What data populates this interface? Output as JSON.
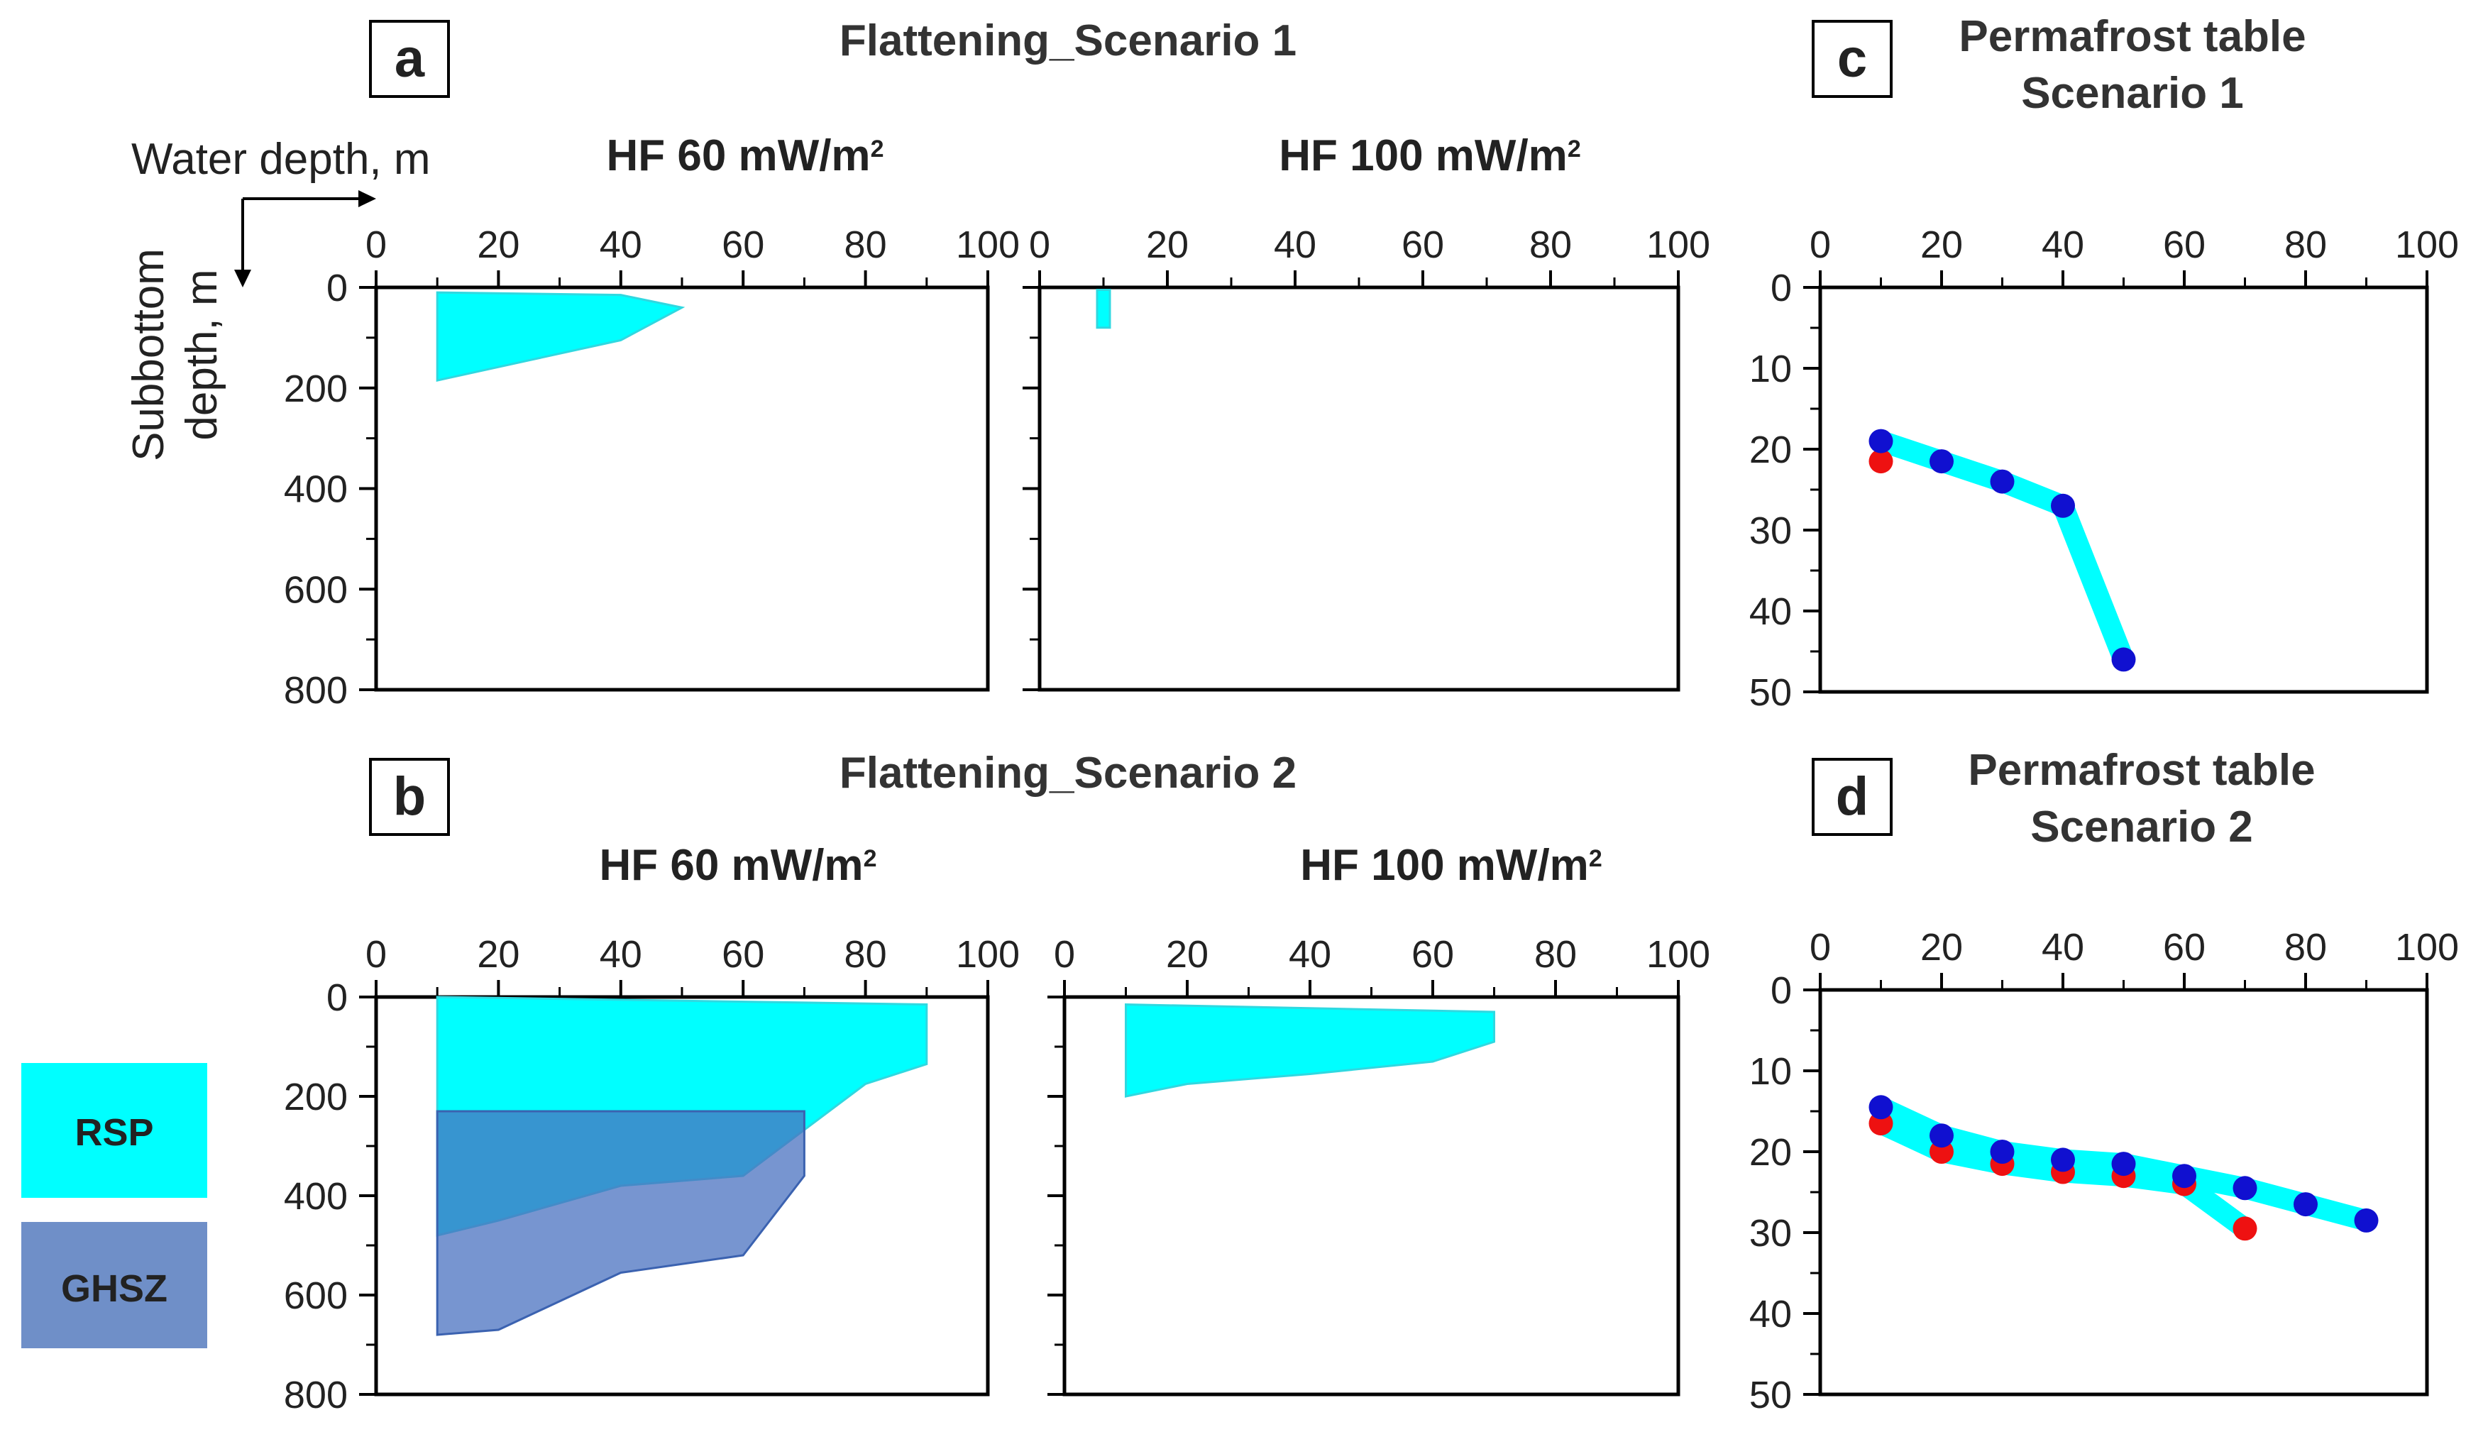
{
  "colors": {
    "rsp": "#00ffff",
    "rsp_edge": "#30d8e0",
    "ghsz": "#4a72c0",
    "blue_dot": "#1010d0",
    "red_dot": "#ee1111",
    "axis": "#000000"
  },
  "figure": {
    "flat_title_1": "Flattening_Scenario 1",
    "flat_title_2": "Flattening_Scenario 2",
    "perm_title_1": [
      "Permafrost table",
      "Scenario 1"
    ],
    "perm_title_2": [
      "Permafrost table",
      "Scenario 2"
    ],
    "water_depth_label": "Water depth, m",
    "subbottom_label": [
      "Subbottom",
      "depth, m"
    ],
    "hf_unit_prefix": "mW/m"
  },
  "legend": [
    {
      "label": "RSP",
      "color": "#00ffff"
    },
    {
      "label": "GHSZ",
      "color": "#6f8fc8"
    }
  ],
  "chart_data": [
    {
      "id": "a1",
      "panel_letter": "a",
      "type": "area",
      "title": "HF 60 mW/m²",
      "hf": "60",
      "x": [
        0,
        100
      ],
      "xticks": [
        0,
        20,
        40,
        60,
        80,
        100
      ],
      "ylim": [
        0,
        800
      ],
      "yticks": [
        0,
        200,
        400,
        600,
        800
      ],
      "yinvert": true,
      "xlabel": "Water depth, m",
      "ylabel": "Subbottom depth, m",
      "series": [
        {
          "name": "RSP",
          "polygon": [
            [
              10,
              10
            ],
            [
              40,
              15
            ],
            [
              50,
              40
            ],
            [
              40,
              105
            ],
            [
              10,
              185
            ]
          ]
        }
      ]
    },
    {
      "id": "a2",
      "panel_letter": "",
      "type": "area",
      "title": "HF 100 mW/m²",
      "hf": "100",
      "x": [
        0,
        100
      ],
      "xticks": [
        0,
        20,
        40,
        60,
        80,
        100
      ],
      "ylim": [
        0,
        800
      ],
      "yticks": [
        0,
        200,
        400,
        600,
        800
      ],
      "yinvert": true,
      "series": [
        {
          "name": "RSP",
          "polygon": [
            [
              9,
              5
            ],
            [
              11,
              5
            ],
            [
              11,
              80
            ],
            [
              9,
              80
            ]
          ]
        }
      ]
    },
    {
      "id": "b1",
      "panel_letter": "b",
      "type": "area",
      "title": "HF 60 mW/m²",
      "hf": "60",
      "x": [
        0,
        100
      ],
      "xticks": [
        0,
        20,
        40,
        60,
        80,
        100
      ],
      "ylim": [
        0,
        800
      ],
      "yticks": [
        0,
        200,
        400,
        600,
        800
      ],
      "yinvert": true,
      "series": [
        {
          "name": "RSP",
          "polygon": [
            [
              10,
              0
            ],
            [
              90,
              15
            ],
            [
              90,
              135
            ],
            [
              80,
              175
            ],
            [
              60,
              360
            ],
            [
              40,
              380
            ],
            [
              20,
              450
            ],
            [
              10,
              480
            ]
          ]
        },
        {
          "name": "GHSZ",
          "polygon": [
            [
              10,
              230
            ],
            [
              70,
              230
            ],
            [
              70,
              360
            ],
            [
              60,
              520
            ],
            [
              40,
              555
            ],
            [
              20,
              670
            ],
            [
              10,
              680
            ]
          ]
        }
      ]
    },
    {
      "id": "b2",
      "panel_letter": "",
      "type": "area",
      "title": "HF 100 mW/m²",
      "hf": "100",
      "x": [
        0,
        100
      ],
      "xticks": [
        0,
        20,
        40,
        60,
        80,
        100
      ],
      "ylim": [
        0,
        800
      ],
      "yticks": [
        0,
        200,
        400,
        600,
        800
      ],
      "yinvert": true,
      "series": [
        {
          "name": "RSP",
          "polygon": [
            [
              10,
              15
            ],
            [
              70,
              30
            ],
            [
              70,
              90
            ],
            [
              60,
              130
            ],
            [
              40,
              155
            ],
            [
              20,
              175
            ],
            [
              10,
              200
            ]
          ]
        }
      ]
    },
    {
      "id": "c",
      "panel_letter": "c",
      "type": "line",
      "title": "Permafrost table Scenario 1",
      "x": [
        0,
        100
      ],
      "xticks": [
        0,
        20,
        40,
        60,
        80,
        100
      ],
      "ylim": [
        0,
        50
      ],
      "yticks": [
        0,
        10,
        20,
        30,
        40,
        50
      ],
      "yinvert": true,
      "series": [
        {
          "name": "blue",
          "x": [
            10,
            20,
            30,
            40,
            50
          ],
          "y": [
            19,
            21.5,
            24,
            27,
            46
          ]
        },
        {
          "name": "red",
          "x": [
            10
          ],
          "y": [
            21.5
          ]
        }
      ]
    },
    {
      "id": "d",
      "panel_letter": "d",
      "type": "line",
      "title": "Permafrost table Scenario 2",
      "x": [
        0,
        100
      ],
      "xticks": [
        0,
        20,
        40,
        60,
        80,
        100
      ],
      "ylim": [
        0,
        50
      ],
      "yticks": [
        0,
        10,
        20,
        30,
        40,
        50
      ],
      "yinvert": true,
      "series": [
        {
          "name": "blue",
          "x": [
            10,
            20,
            30,
            40,
            50,
            60,
            70,
            80,
            90
          ],
          "y": [
            14.5,
            18,
            20,
            21,
            21.5,
            23,
            24.5,
            26.5,
            28.5
          ]
        },
        {
          "name": "red",
          "x": [
            10,
            20,
            30,
            40,
            50,
            60,
            70
          ],
          "y": [
            16.5,
            20,
            21.5,
            22.5,
            23,
            24,
            29.5
          ]
        }
      ]
    }
  ]
}
